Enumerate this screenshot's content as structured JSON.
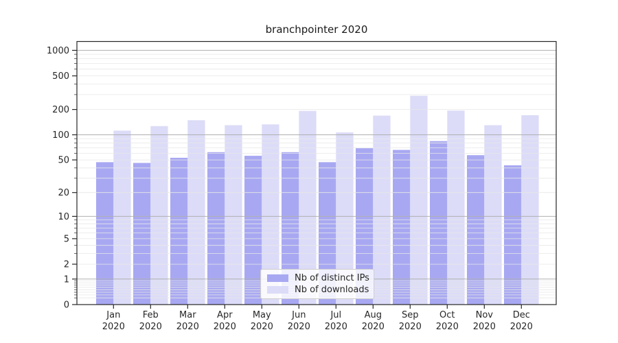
{
  "chart_data": {
    "type": "bar",
    "title": "branchpointer 2020",
    "categories": [
      "Jan",
      "Feb",
      "Mar",
      "Apr",
      "May",
      "Jun",
      "Jul",
      "Aug",
      "Sep",
      "Oct",
      "Nov",
      "Dec"
    ],
    "year_label": "2020",
    "series": [
      {
        "name": "Nb of distinct IPs",
        "color": "#a8a8f2",
        "values": [
          47,
          46,
          53,
          62,
          56,
          62,
          47,
          69,
          66,
          84,
          57,
          43
        ]
      },
      {
        "name": "Nb of downloads",
        "color": "#dcdcf8",
        "values": [
          112,
          127,
          149,
          130,
          133,
          192,
          107,
          169,
          291,
          194,
          130,
          171
        ]
      }
    ],
    "yticks": [
      0,
      1,
      2,
      5,
      10,
      20,
      50,
      100,
      200,
      500,
      1000
    ],
    "yscale": "log1p",
    "ylim": [
      0,
      1300
    ],
    "xlabel": "",
    "ylabel": "",
    "grid": true,
    "legend_position": "lower-center"
  },
  "colors": {
    "background": "#ffffff",
    "axis": "#262626",
    "text": "#262626",
    "major_grid": "#b0b0b0",
    "minor_grid": "#e7e7e7"
  }
}
